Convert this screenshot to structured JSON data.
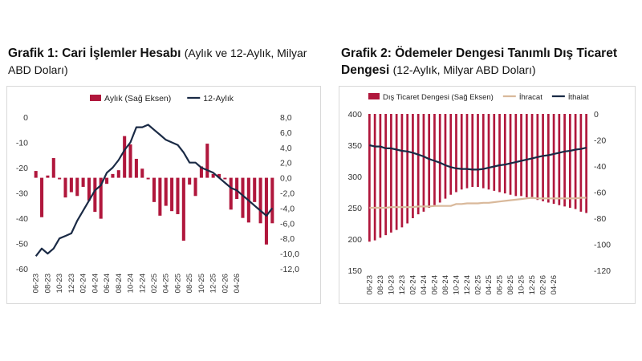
{
  "chart1": {
    "title_bold": "Grafik 1: Cari İşlemler Hesabı",
    "title_rest": "(Aylık ve 12-Aylık, Milyar ABD Doları)"
  },
  "chart2": {
    "title_bold": "Grafik 2: Ödemeler Dengesi Tanımlı Dış Ticaret Dengesi",
    "title_rest": "(12-Aylık, Milyar ABD Doları)"
  },
  "colors": {
    "bar": "#b0173c",
    "line": "#1a2a45",
    "export": "#d9b99b"
  },
  "chart_data": [
    {
      "type": "bar",
      "title": "Grafik 1: Cari İşlemler Hesabı (Aylık ve 12-Aylık, Milyar ABD Doları)",
      "x_tick_labels": [
        "06-23",
        "08-23",
        "10-23",
        "12-23",
        "02-24",
        "04-24",
        "06-24",
        "08-24",
        "10-24",
        "12-24",
        "02-25",
        "04-25",
        "06-25",
        "08-25",
        "10-25",
        "12-25",
        "02-26",
        "04-26"
      ],
      "left_axis": {
        "ylim": [
          -60,
          0
        ],
        "ticks": [
          0,
          -10,
          -20,
          -30,
          -40,
          -50,
          -60
        ]
      },
      "right_axis": {
        "ylim": [
          -12,
          8
        ],
        "ticks": [
          "8,0",
          "6,0",
          "4,0",
          "2,0",
          "0,0",
          "-2,0",
          "-4,0",
          "-6,0",
          "-8,0",
          "-10,0",
          "-12,0"
        ]
      },
      "legend": "top",
      "series": [
        {
          "name": "Aylık (Sağ Eksen)",
          "type": "bar",
          "axis": "right",
          "values": [
            0.9,
            -5.2,
            0.3,
            2.6,
            -0.2,
            -2.6,
            -1.9,
            -2.4,
            -1.2,
            -3.0,
            -4.5,
            -5.4,
            -0.8,
            0.5,
            1.0,
            5.5,
            4.4,
            2.5,
            1.2,
            -0.2,
            -3.2,
            -5.0,
            -3.7,
            -4.4,
            -4.8,
            -8.3,
            -0.9,
            -2.4,
            1.5,
            4.5,
            0.5,
            0.5,
            -0.2,
            -4.2,
            -2.8,
            -5.3,
            -5.9,
            -3.2,
            -6.0,
            -8.8,
            -6.0
          ]
        },
        {
          "name": "12-Aylık",
          "type": "line",
          "axis": "left",
          "values": [
            -55,
            -52,
            -54,
            -52,
            -48,
            -47,
            -46,
            -41,
            -37,
            -33,
            -29,
            -27,
            -22,
            -20,
            -17,
            -13,
            -10,
            -4,
            -4,
            -3,
            -5,
            -7,
            -9,
            -10,
            -11,
            -14,
            -18,
            -18,
            -20,
            -21,
            -22,
            -24,
            -26,
            -28,
            -29,
            -31,
            -33,
            -35,
            -37,
            -39,
            -36
          ]
        }
      ]
    },
    {
      "type": "bar",
      "title": "Grafik 2: Ödemeler Dengesi Tanımlı Dış Ticaret Dengesi (12-Aylık, Milyar ABD Doları)",
      "x_tick_labels": [
        "06-23",
        "08-23",
        "10-23",
        "12-23",
        "02-24",
        "04-24",
        "06-24",
        "08-24",
        "10-24",
        "12-24",
        "02-25",
        "04-25",
        "06-25",
        "08-25",
        "10-25",
        "12-25",
        "02-26",
        "04-26"
      ],
      "left_axis": {
        "ylim": [
          150,
          400
        ],
        "ticks": [
          400,
          350,
          300,
          250,
          200,
          150
        ]
      },
      "right_axis": {
        "ylim": [
          -120,
          0
        ],
        "ticks": [
          0,
          -20,
          -40,
          -60,
          -80,
          -100,
          -120
        ]
      },
      "legend": "top",
      "series": [
        {
          "name": "Dış Ticaret Dengesi (Sağ Eksen)",
          "type": "bar",
          "axis": "right",
          "values": [
            -98,
            -97,
            -95,
            -93,
            -91,
            -89,
            -87,
            -84,
            -80,
            -77,
            -75,
            -72,
            -70,
            -68,
            -65,
            -62,
            -60,
            -58,
            -57,
            -56,
            -56,
            -57,
            -58,
            -59,
            -60,
            -61,
            -62,
            -63,
            -63,
            -64,
            -65,
            -66,
            -67,
            -68,
            -69,
            -70,
            -71,
            -72,
            -73,
            -75,
            -76
          ]
        },
        {
          "name": "İhracat",
          "type": "line",
          "axis": "left",
          "values": [
            250,
            250,
            250,
            250,
            251,
            251,
            251,
            251,
            251,
            252,
            252,
            252,
            253,
            253,
            253,
            253,
            256,
            256,
            257,
            257,
            257,
            258,
            258,
            259,
            260,
            261,
            262,
            263,
            264,
            265,
            266,
            265,
            265,
            265,
            265,
            265,
            265,
            265,
            265,
            266,
            266
          ]
        },
        {
          "name": "İthalat",
          "type": "line",
          "axis": "left",
          "values": [
            350,
            348,
            348,
            345,
            345,
            343,
            341,
            340,
            338,
            335,
            332,
            328,
            325,
            322,
            318,
            315,
            313,
            312,
            312,
            311,
            311,
            312,
            314,
            316,
            318,
            319,
            321,
            323,
            325,
            327,
            329,
            331,
            333,
            334,
            336,
            338,
            340,
            341,
            343,
            344,
            346
          ]
        }
      ]
    }
  ]
}
